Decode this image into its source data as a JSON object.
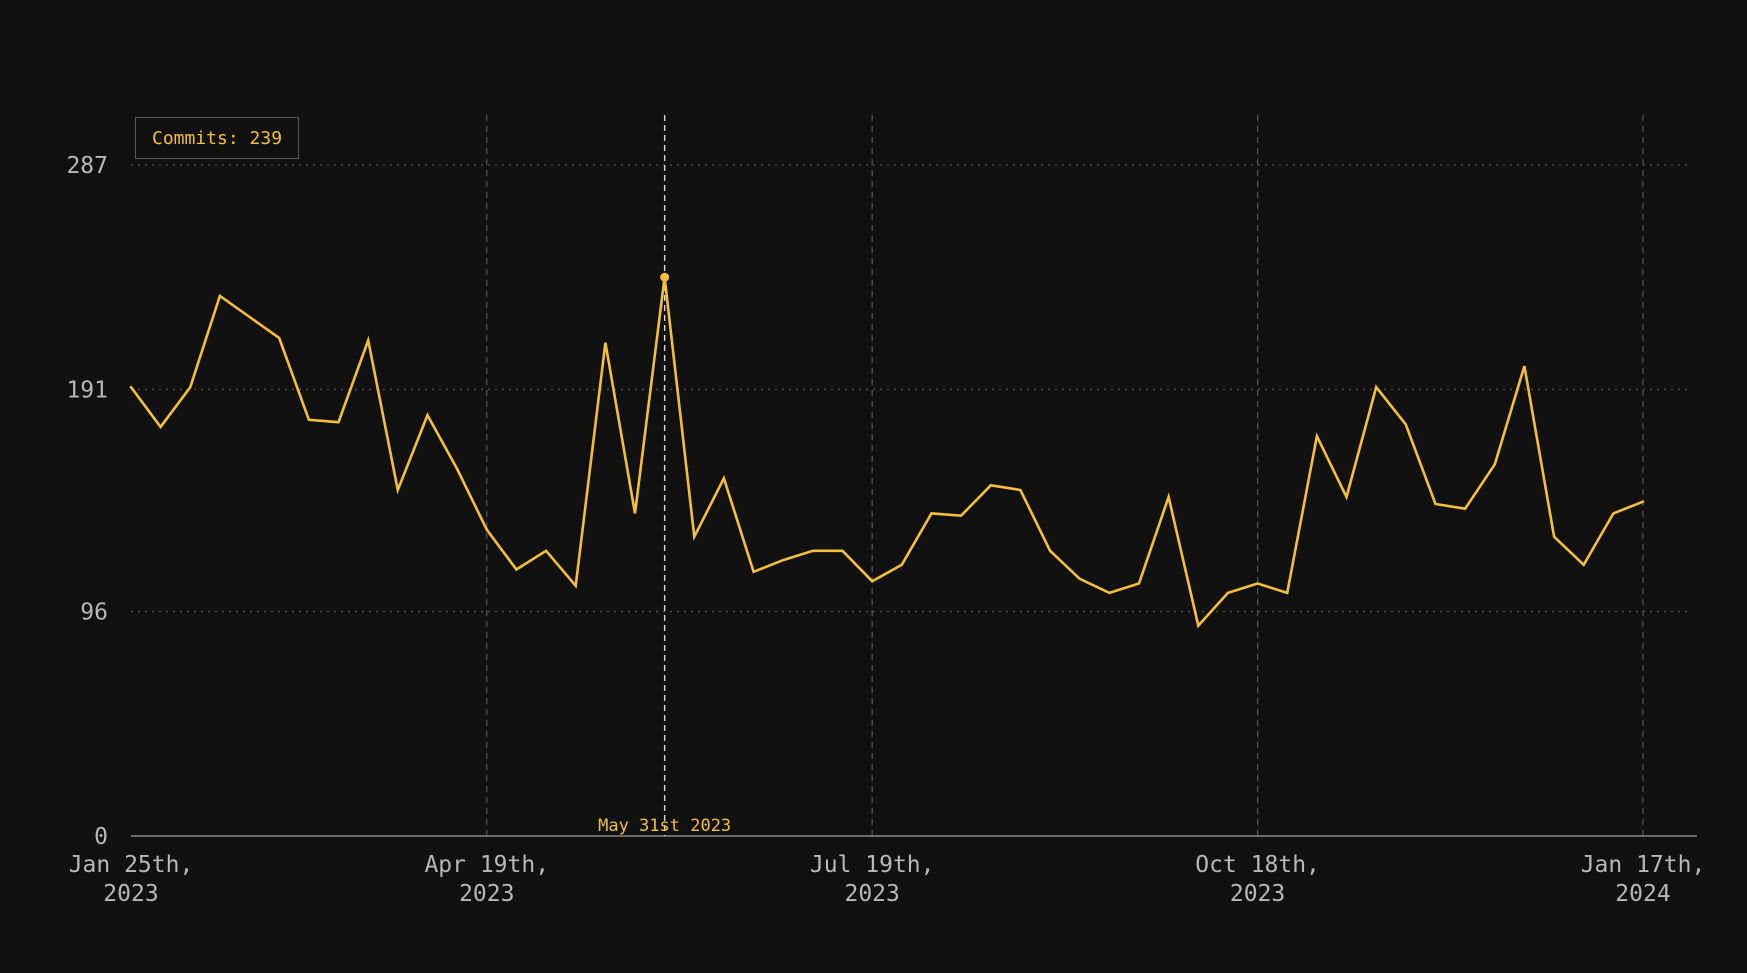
{
  "colors": {
    "background": "#111111",
    "line": "#f4bf3a",
    "grid": "#555555",
    "axis": "#888888",
    "tick_text": "#b8b8b8",
    "hover_line": "#d8d8d8"
  },
  "tooltip": {
    "label": "Commits",
    "value": 239,
    "text": "Commits: 239"
  },
  "hover": {
    "date_label": "May 31st 2023",
    "index": 18
  },
  "chart_data": {
    "type": "line",
    "title": "",
    "xlabel": "",
    "ylabel": "",
    "x_start": "2023-01-25",
    "x_interval_days": 7,
    "x": [
      "2023-01-25",
      "2023-02-01",
      "2023-02-08",
      "2023-02-15",
      "2023-02-22",
      "2023-03-01",
      "2023-03-08",
      "2023-03-15",
      "2023-03-22",
      "2023-03-29",
      "2023-04-05",
      "2023-04-12",
      "2023-04-19",
      "2023-04-26",
      "2023-05-03",
      "2023-05-10",
      "2023-05-17",
      "2023-05-24",
      "2023-05-31",
      "2023-06-07",
      "2023-06-14",
      "2023-06-21",
      "2023-06-28",
      "2023-07-05",
      "2023-07-12",
      "2023-07-19",
      "2023-07-26",
      "2023-08-02",
      "2023-08-09",
      "2023-08-16",
      "2023-08-23",
      "2023-08-30",
      "2023-09-06",
      "2023-09-13",
      "2023-09-20",
      "2023-09-27",
      "2023-10-04",
      "2023-10-11",
      "2023-10-18",
      "2023-10-25",
      "2023-11-01",
      "2023-11-08",
      "2023-11-15",
      "2023-11-22",
      "2023-11-29",
      "2023-12-06",
      "2023-12-13",
      "2023-12-20",
      "2023-12-27",
      "2024-01-03",
      "2024-01-10",
      "2024-01-17"
    ],
    "series": [
      {
        "name": "Commits",
        "values": [
          192,
          175,
          192,
          231,
          222,
          213,
          178,
          177,
          212,
          148,
          180,
          157,
          131,
          114,
          122,
          107,
          211,
          138,
          239,
          128,
          153,
          113,
          118,
          122,
          122,
          109,
          116,
          138,
          137,
          150,
          148,
          122,
          110,
          104,
          108,
          145,
          90,
          104,
          108,
          104,
          171,
          145,
          192,
          176,
          142,
          140,
          159,
          201,
          128,
          116,
          138,
          143
        ]
      }
    ],
    "ylim": [
      0,
      287
    ],
    "yticks": [
      {
        "value": 0,
        "label": "0"
      },
      {
        "value": 96,
        "label": "96"
      },
      {
        "value": 191,
        "label": "191"
      },
      {
        "value": 287,
        "label": "287"
      }
    ],
    "xticks": [
      {
        "date": "2023-01-25",
        "line1": "Jan 25th,",
        "line2": "2023"
      },
      {
        "date": "2023-04-19",
        "line1": "Apr 19th,",
        "line2": "2023"
      },
      {
        "date": "2023-07-19",
        "line1": "Jul 19th,",
        "line2": "2023"
      },
      {
        "date": "2023-10-18",
        "line1": "Oct 18th,",
        "line2": "2023"
      },
      {
        "date": "2024-01-17",
        "line1": "Jan 17th,",
        "line2": "2024"
      }
    ],
    "grid": true,
    "legend": "none"
  }
}
